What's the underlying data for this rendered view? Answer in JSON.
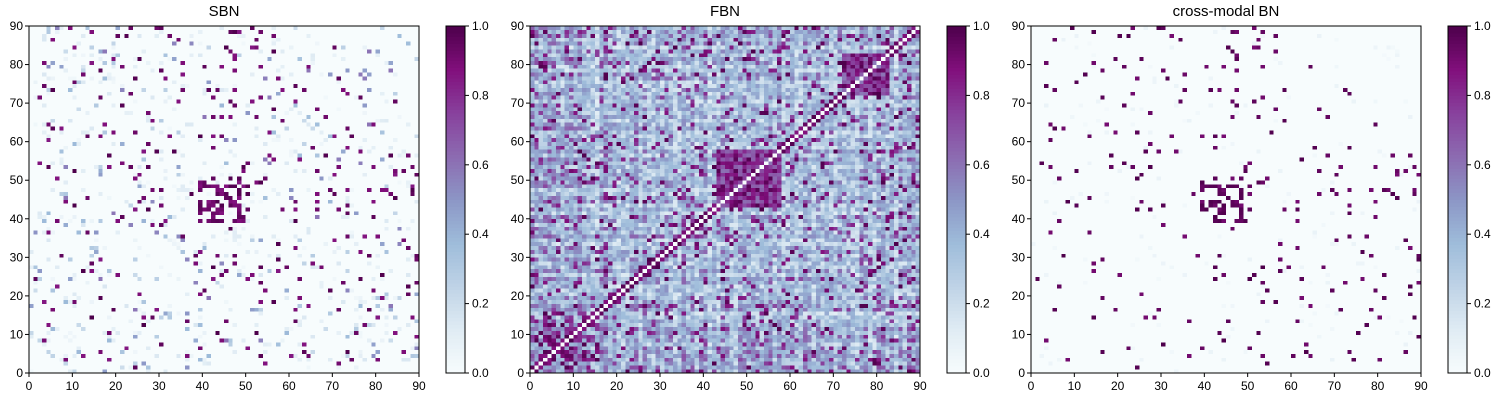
{
  "figure": {
    "colormap": "BuPu",
    "colormap_stops": [
      "#f7fcfd",
      "#e0ecf4",
      "#bfd3e6",
      "#9ebcda",
      "#8c96c6",
      "#8c6bb1",
      "#88419d",
      "#810f7c",
      "#4d004b"
    ]
  },
  "chart_data": [
    {
      "type": "heatmap",
      "title": "SBN",
      "x_ticks": [
        0,
        10,
        20,
        30,
        40,
        50,
        60,
        70,
        80,
        90
      ],
      "y_ticks": [
        0,
        10,
        20,
        30,
        40,
        50,
        60,
        70,
        80,
        90
      ],
      "xlim": [
        0,
        90
      ],
      "ylim": [
        0,
        90
      ],
      "colorbar": {
        "min": 0.0,
        "max": 1.0,
        "ticks": [
          "0.0",
          "0.2",
          "0.4",
          "0.6",
          "0.8",
          "1.0"
        ]
      },
      "matrix_size": 90,
      "pattern": "sparse symmetric matrix, mostly near 0 with scattered strong (≈1.0) connections; cluster of strong values around nodes 40–50"
    },
    {
      "type": "heatmap",
      "title": "FBN",
      "x_ticks": [
        0,
        10,
        20,
        30,
        40,
        50,
        60,
        70,
        80,
        90
      ],
      "y_ticks": [
        0,
        10,
        20,
        30,
        40,
        50,
        60,
        70,
        80,
        90
      ],
      "xlim": [
        0,
        90
      ],
      "ylim": [
        0,
        90
      ],
      "colorbar": {
        "min": 0.0,
        "max": 1.0,
        "ticks": [
          "0.0",
          "0.2",
          "0.4",
          "0.6",
          "0.8",
          "1.0"
        ]
      },
      "matrix_size": 90,
      "pattern": "dense symmetric matrix with values spread 0–1; strong diagonal band; strong block around nodes 43–57 and 72–82"
    },
    {
      "type": "heatmap",
      "title": "cross-modal BN",
      "x_ticks": [
        0,
        10,
        20,
        30,
        40,
        50,
        60,
        70,
        80,
        90
      ],
      "y_ticks": [
        0,
        10,
        20,
        30,
        40,
        50,
        60,
        70,
        80,
        90
      ],
      "xlim": [
        0,
        90
      ],
      "ylim": [
        0,
        90
      ],
      "colorbar": {
        "min": 0.0,
        "max": 1.0,
        "ticks": [
          "0.0",
          "0.2",
          "0.4",
          "0.6",
          "0.8",
          "1.0"
        ]
      },
      "matrix_size": 90,
      "pattern": "very sparse symmetric matrix, near 0 background with isolated strong (≈1.0) connections following SBN structure"
    }
  ]
}
